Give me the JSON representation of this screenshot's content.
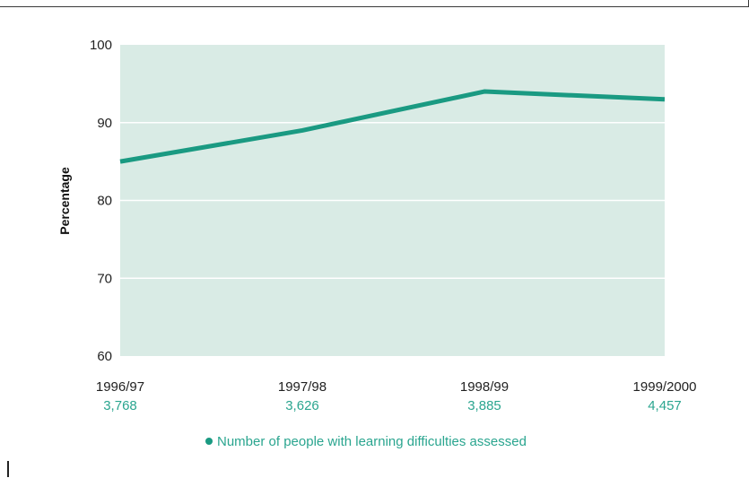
{
  "chart_data": {
    "type": "line",
    "title": "",
    "xlabel": "",
    "ylabel": "Percentage",
    "ylim": [
      60,
      100
    ],
    "yticks": [
      60,
      70,
      80,
      90,
      100
    ],
    "grid": true,
    "categories": [
      "1996/97",
      "1997/98",
      "1998/99",
      "1999/2000"
    ],
    "category_counts": [
      "3,768",
      "3,626",
      "3,885",
      "4,457"
    ],
    "series": [
      {
        "name": "Number of people with learning difficulties assessed",
        "values": [
          85,
          89,
          94,
          93
        ]
      }
    ],
    "legend_position": "bottom",
    "colors": {
      "plot_background": "#d9ebe5",
      "line": "#1a9a82",
      "gridline": "#ffffff",
      "count_text": "#2aa58f"
    }
  },
  "legend": {
    "text": "Number of people with learning difficulties assessed"
  }
}
